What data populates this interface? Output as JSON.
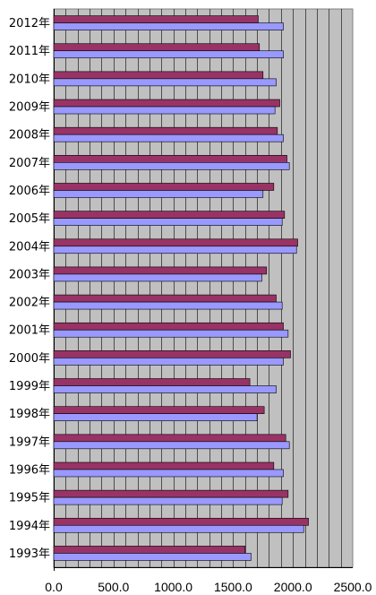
{
  "chart_data": {
    "type": "bar",
    "orientation": "horizontal",
    "categories": [
      "2012年",
      "2011年",
      "2010年",
      "2009年",
      "2008年",
      "2007年",
      "2006年",
      "2005年",
      "2004年",
      "2003年",
      "2002年",
      "2001年",
      "2000年",
      "1999年",
      "1998年",
      "1997年",
      "1996年",
      "1995年",
      "1994年",
      "1993年"
    ],
    "series": [
      {
        "color": "#993366",
        "values": [
          1710,
          1720,
          1750,
          1890,
          1870,
          1950,
          1840,
          1930,
          2040,
          1780,
          1860,
          1920,
          1980,
          1640,
          1760,
          1940,
          1840,
          1960,
          2130,
          1600
        ]
      },
      {
        "color": "#9999ff",
        "values": [
          1920,
          1920,
          1860,
          1850,
          1920,
          1970,
          1750,
          1910,
          2030,
          1740,
          1910,
          1960,
          1920,
          1860,
          1700,
          1970,
          1920,
          1910,
          2090,
          1650
        ]
      }
    ],
    "xlim": [
      0,
      2500
    ],
    "xticks": [
      "0.0",
      "500.0",
      "1000.0",
      "1500.0",
      "2000.0",
      "2500.0"
    ],
    "grid": true,
    "plot_background": "#c0c0c0",
    "gridline_color": "#000000",
    "title": "",
    "xlabel": "",
    "ylabel": ""
  }
}
